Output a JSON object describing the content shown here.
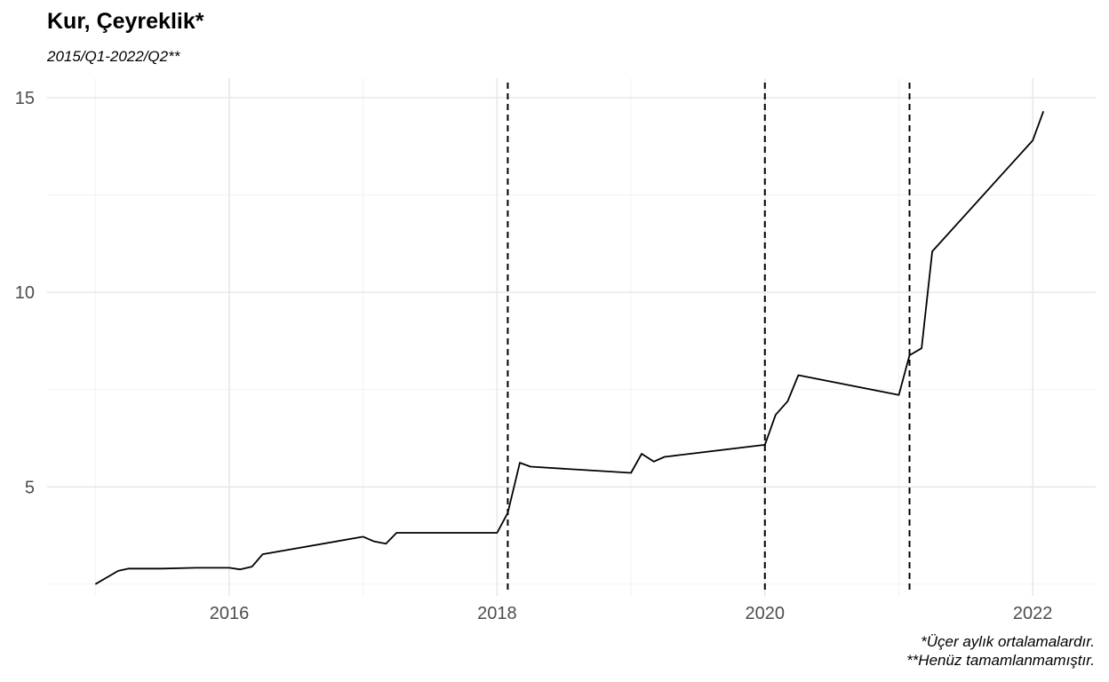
{
  "chart_data": {
    "type": "line",
    "title": "Kur, Çeyreklik*",
    "subtitle": "2015/Q1-2022/Q2**",
    "caption": [
      "*Üçer aylık ortalamalardır.",
      "**Henüz tamamlanmamıştır."
    ],
    "xlabel": "",
    "ylabel": "",
    "xlim": [
      2014.64,
      2022.47
    ],
    "ylim": [
      2.2,
      15.5
    ],
    "x_ticks": [
      2016,
      2018,
      2020,
      2022
    ],
    "y_ticks": [
      5,
      10,
      15
    ],
    "grid": true,
    "legend": "none",
    "vlines": [
      2018.08,
      2020.0,
      2021.08
    ],
    "series": [
      {
        "color": "#000000",
        "x": [
          2015.0,
          2015.17,
          2015.25,
          2015.5,
          2015.75,
          2016.0,
          2016.08,
          2016.17,
          2016.25,
          2017.0,
          2017.08,
          2017.17,
          2017.25,
          2018.0,
          2018.08,
          2018.17,
          2018.25,
          2019.0,
          2019.08,
          2019.17,
          2019.25,
          2020.0,
          2020.08,
          2020.17,
          2020.25,
          2021.0,
          2021.08,
          2021.17,
          2021.25,
          2022.0,
          2022.08
        ],
        "y": [
          2.5,
          2.84,
          2.9,
          2.9,
          2.92,
          2.92,
          2.88,
          2.95,
          3.27,
          3.72,
          3.6,
          3.54,
          3.82,
          3.82,
          4.33,
          5.62,
          5.52,
          5.36,
          5.85,
          5.65,
          5.77,
          6.08,
          6.85,
          7.2,
          7.87,
          7.36,
          8.38,
          8.56,
          11.05,
          13.9,
          14.65
        ]
      }
    ]
  }
}
